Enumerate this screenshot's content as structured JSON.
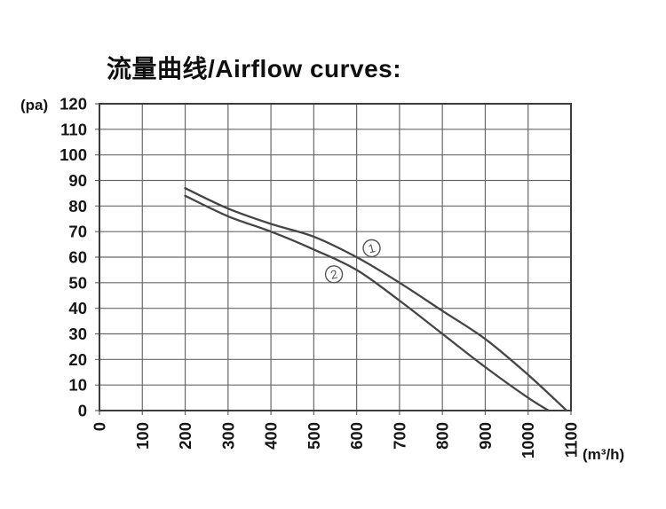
{
  "chart": {
    "title": "流量曲线/Airflow curves:",
    "y_unit": "(pa)",
    "x_unit": "(m³/h)"
  },
  "chart_data": {
    "type": "line",
    "title": "流量曲线/Airflow curves:",
    "xlabel": "(m³/h)",
    "ylabel": "(pa)",
    "xlim": [
      0,
      1100
    ],
    "ylim": [
      0,
      120
    ],
    "x_ticks": [
      0,
      100,
      200,
      300,
      400,
      500,
      600,
      700,
      800,
      900,
      1000,
      1100
    ],
    "y_ticks": [
      0,
      10,
      20,
      30,
      40,
      50,
      60,
      70,
      80,
      90,
      100,
      110,
      120
    ],
    "grid": true,
    "x_tick_rotation": -90,
    "series": [
      {
        "name": "curve-1",
        "label": "1",
        "label_circled": true,
        "label_at": [
          635,
          63.5
        ],
        "points": [
          [
            200,
            87
          ],
          [
            300,
            79
          ],
          [
            400,
            73
          ],
          [
            500,
            68
          ],
          [
            600,
            60
          ],
          [
            700,
            50
          ],
          [
            800,
            39
          ],
          [
            900,
            28
          ],
          [
            1000,
            14
          ],
          [
            1090,
            0
          ]
        ]
      },
      {
        "name": "curve-2",
        "label": "2",
        "label_circled": true,
        "label_at": [
          547,
          53.3
        ],
        "points": [
          [
            200,
            84
          ],
          [
            300,
            76
          ],
          [
            400,
            70
          ],
          [
            500,
            63
          ],
          [
            600,
            55
          ],
          [
            700,
            43
          ],
          [
            800,
            30
          ],
          [
            900,
            17
          ],
          [
            1000,
            5
          ],
          [
            1048,
            0
          ]
        ]
      }
    ],
    "colors": {
      "curve": "#454545",
      "grid": "#686868",
      "border": "#3c3c3c",
      "text": "#161616",
      "label": "#555555",
      "background": "#ffffff"
    }
  }
}
